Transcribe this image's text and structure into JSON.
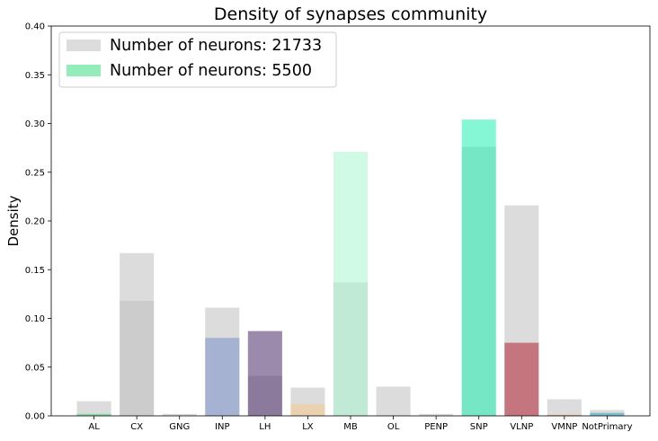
{
  "chart_data": {
    "type": "bar",
    "title": "Density of synapses community",
    "xlabel": "",
    "ylabel": "Density",
    "ylim": [
      0,
      0.4
    ],
    "yticks": [
      0.0,
      0.05,
      0.1,
      0.15,
      0.2,
      0.25,
      0.3,
      0.35,
      0.4
    ],
    "ytick_labels": [
      "0.00",
      "0.05",
      "0.10",
      "0.15",
      "0.20",
      "0.25",
      "0.30",
      "0.35",
      "0.40"
    ],
    "categories": [
      "AL",
      "CX",
      "GNG",
      "INP",
      "LH",
      "LX",
      "MB",
      "OL",
      "PENP",
      "SNP",
      "VLNP",
      "VMNP",
      "NotPrimary"
    ],
    "legend_position": "top-left",
    "series": [
      {
        "name": "Number of neurons: 21733",
        "color": "#bfbfbf",
        "values": [
          0.015,
          0.167,
          0.002,
          0.111,
          0.041,
          0.029,
          0.137,
          0.03,
          0.002,
          0.276,
          0.216,
          0.017,
          0.006
        ]
      },
      {
        "name": "Number of neurons: 5500",
        "color": "#3ddc84",
        "colors": [
          "#3ddc84",
          "#bfbfbf",
          "#bfbfbf",
          "#7890c8",
          "#4a2a6a",
          "#f5c98a",
          "#aaf5d0",
          "#bfbfbf",
          "#bfbfbf",
          "#22f0b0",
          "#b22030",
          "#e09050",
          "#2aa8c8"
        ],
        "values": [
          0.002,
          0.118,
          0.0,
          0.08,
          0.087,
          0.012,
          0.271,
          0.0,
          0.0,
          0.304,
          0.075,
          0.001,
          0.003
        ]
      }
    ]
  }
}
